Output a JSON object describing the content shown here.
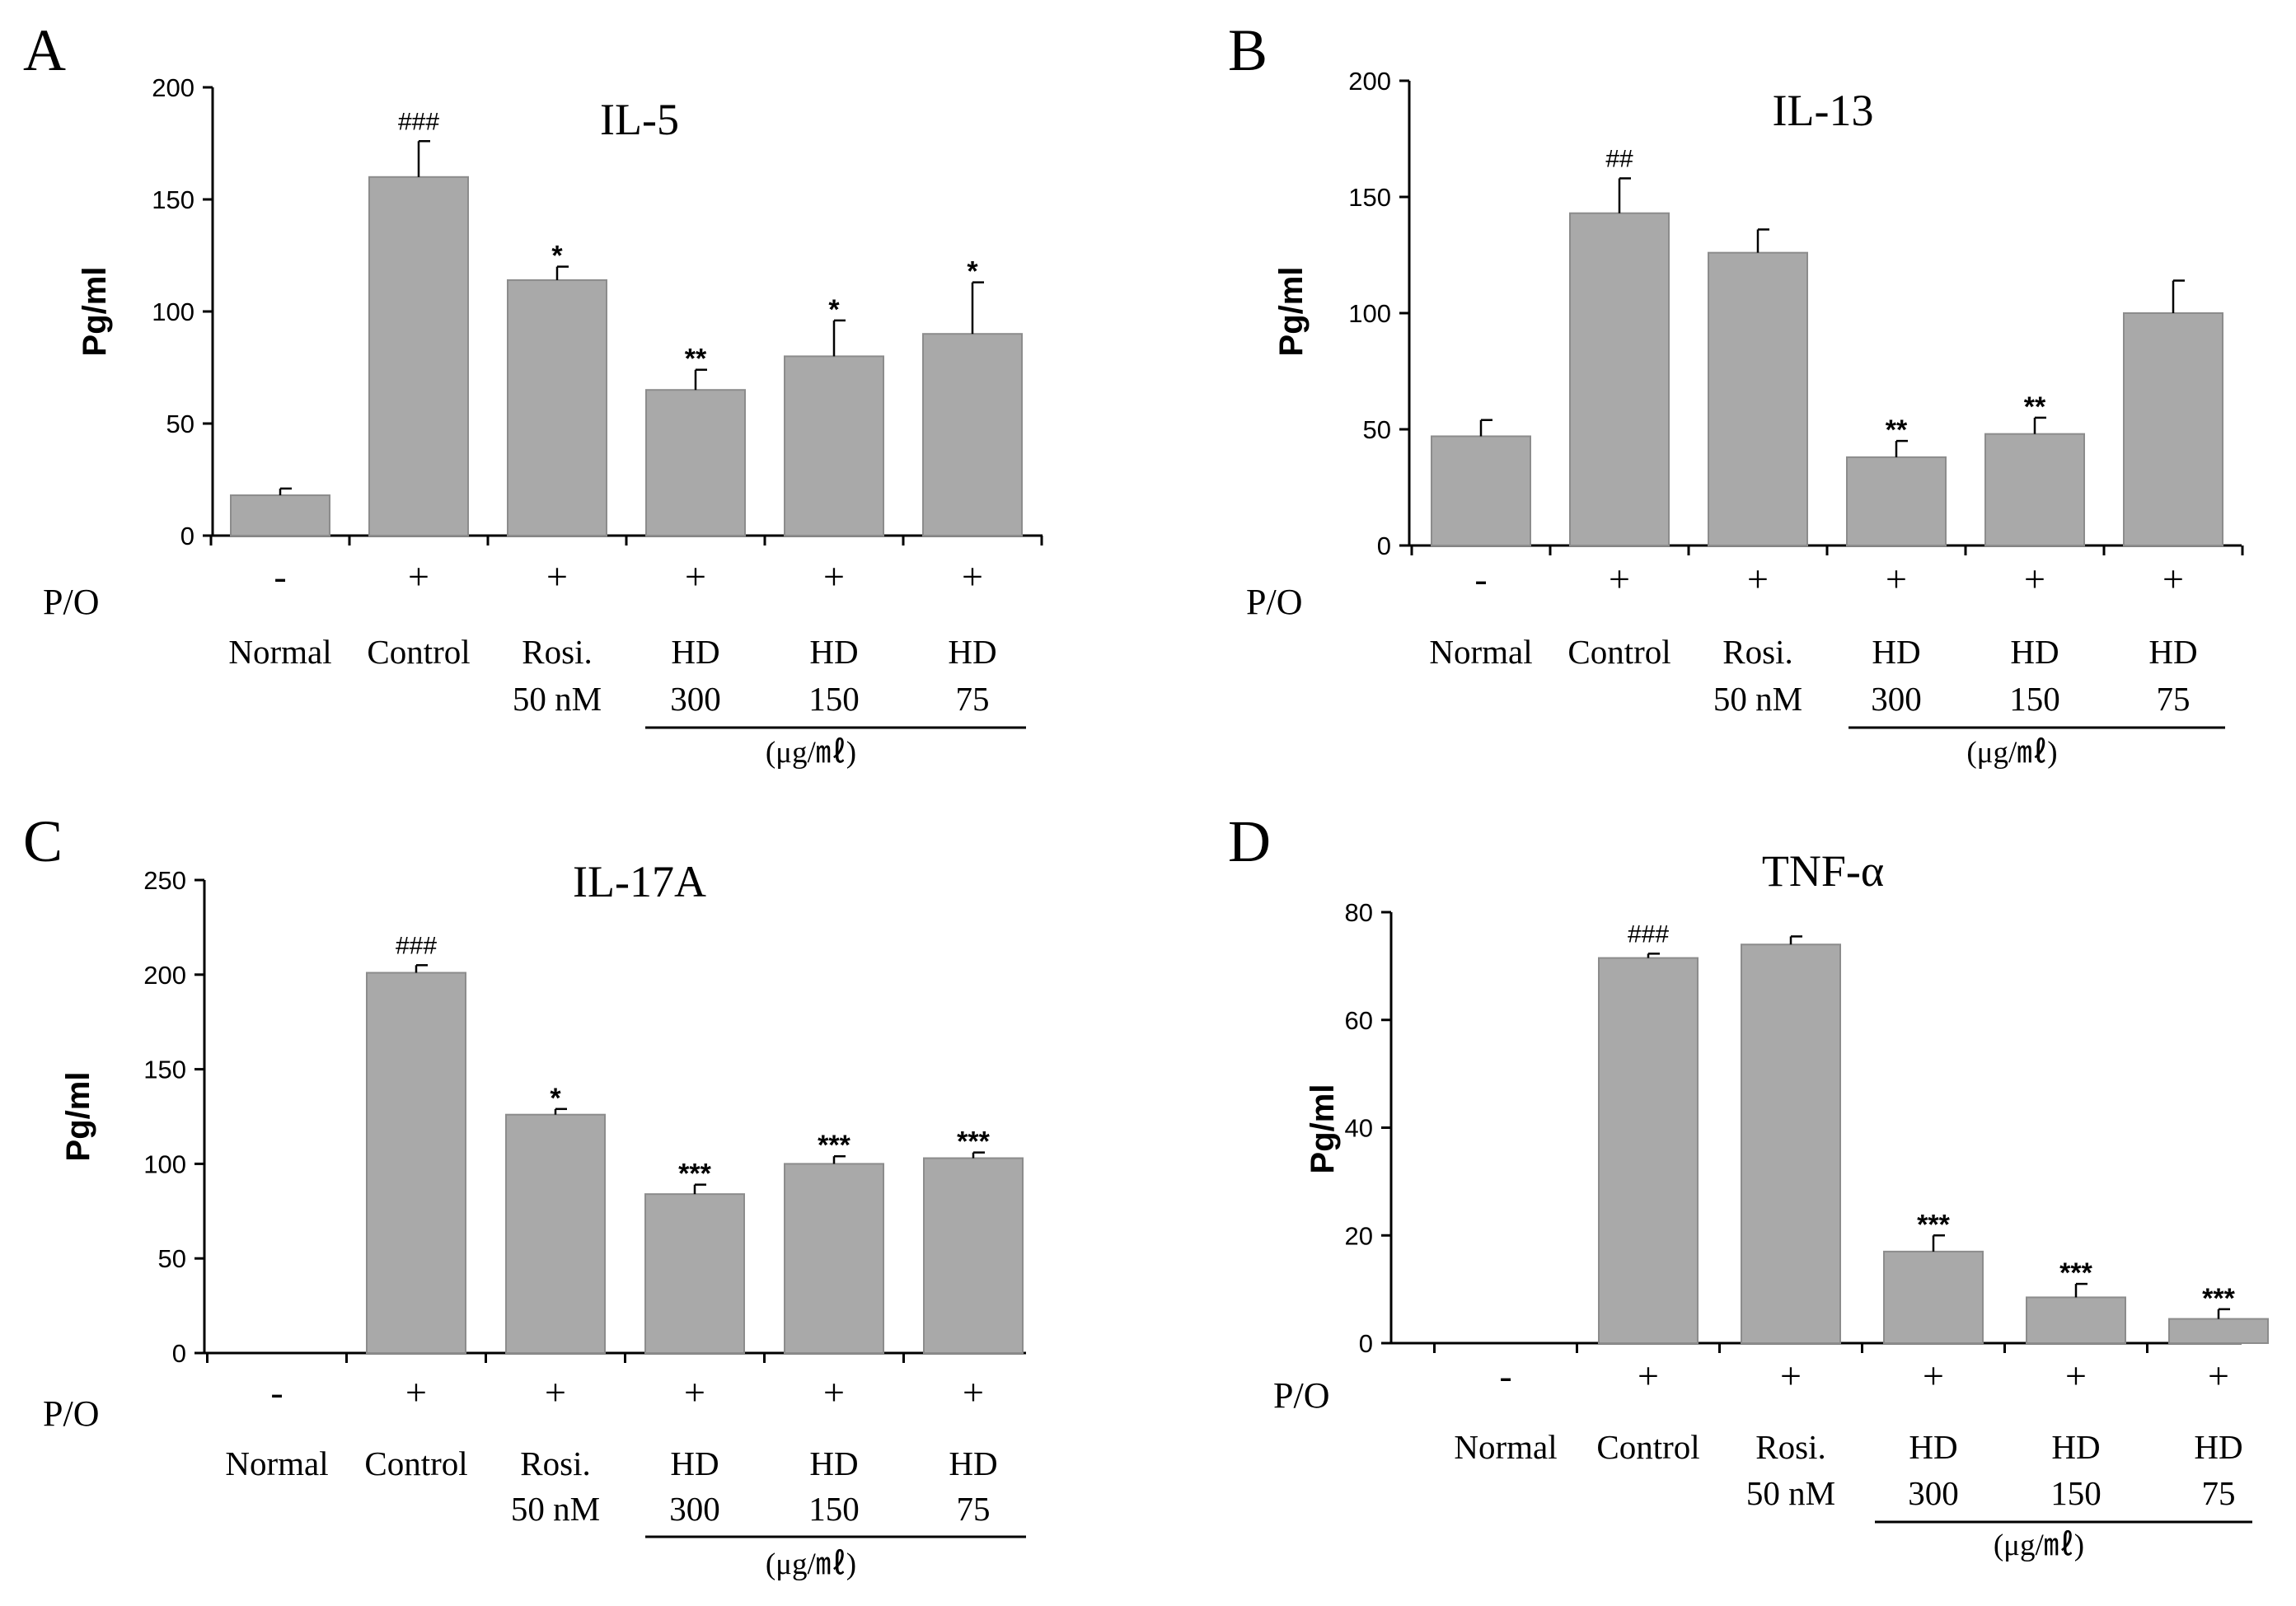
{
  "chart_data": [
    {
      "type": "bar",
      "panel": "A",
      "title": "IL-5",
      "ylabel": "Pg/ml",
      "ylim": [
        0,
        200
      ],
      "yticks": [
        "0",
        "50",
        "100",
        "150",
        "200"
      ],
      "po_label": "P/O",
      "treatment": [
        "-",
        "+",
        "+",
        "+",
        "+",
        "+"
      ],
      "categories": [
        [
          "Normal"
        ],
        [
          "Control"
        ],
        [
          "Rosi.",
          "50 nM"
        ],
        [
          "HD",
          "300"
        ],
        [
          "HD",
          "150"
        ],
        [
          "HD",
          "75"
        ]
      ],
      "unit_label": "(μg/㎖)",
      "values": [
        18,
        160,
        114,
        65,
        80,
        90
      ],
      "errors": [
        3,
        16,
        6,
        9,
        16,
        23
      ],
      "significance": [
        "",
        "###",
        "*",
        "**",
        "*",
        "*"
      ]
    },
    {
      "type": "bar",
      "panel": "B",
      "title": "IL-13",
      "ylabel": "Pg/ml",
      "ylim": [
        0,
        200
      ],
      "yticks": [
        "0",
        "50",
        "100",
        "150",
        "200"
      ],
      "po_label": "P/O",
      "treatment": [
        "-",
        "+",
        "+",
        "+",
        "+",
        "+"
      ],
      "categories": [
        [
          "Normal"
        ],
        [
          "Control"
        ],
        [
          "Rosi.",
          "50 nM"
        ],
        [
          "HD",
          "300"
        ],
        [
          "HD",
          "150"
        ],
        [
          "HD",
          "75"
        ]
      ],
      "unit_label": "(μg/㎖)",
      "values": [
        47,
        143,
        126,
        38,
        48,
        100
      ],
      "errors": [
        7,
        15,
        10,
        7,
        7,
        14
      ],
      "significance": [
        "",
        "##",
        "",
        "**",
        "**",
        ""
      ]
    },
    {
      "type": "bar",
      "panel": "C",
      "title": "IL-17A",
      "ylabel": "Pg/ml",
      "ylim": [
        0,
        250
      ],
      "yticks": [
        "0",
        "50",
        "100",
        "150",
        "200",
        "250"
      ],
      "po_label": "P/O",
      "treatment": [
        "-",
        "+",
        "+",
        "+",
        "+",
        "+"
      ],
      "categories": [
        [
          "Normal"
        ],
        [
          "Control"
        ],
        [
          "Rosi.",
          "50 nM"
        ],
        [
          "HD",
          "300"
        ],
        [
          "HD",
          "150"
        ],
        [
          "HD",
          "75"
        ]
      ],
      "unit_label": "(μg/㎖)",
      "values": [
        0,
        201,
        126,
        84,
        100,
        103
      ],
      "errors": [
        0,
        4,
        3,
        5,
        4,
        3
      ],
      "significance": [
        "",
        "###",
        "*",
        "***",
        "***",
        "***"
      ]
    },
    {
      "type": "bar",
      "panel": "D",
      "title": "TNF-α",
      "ylabel": "Pg/ml",
      "ylim": [
        0,
        80
      ],
      "yticks": [
        "0",
        "20",
        "40",
        "60",
        "80"
      ],
      "po_label": "P/O",
      "treatment": [
        "-",
        "+",
        "+",
        "+",
        "+",
        "+"
      ],
      "categories": [
        [
          "Normal"
        ],
        [
          "Control"
        ],
        [
          "Rosi.",
          "50 nM"
        ],
        [
          "HD",
          "300"
        ],
        [
          "HD",
          "150"
        ],
        [
          "HD",
          "75"
        ]
      ],
      "unit_label": "(μg/㎖)",
      "values": [
        0,
        71.5,
        74,
        17,
        8.5,
        4.5
      ],
      "errors": [
        0,
        0.8,
        1.5,
        3,
        2.5,
        1.8
      ],
      "significance": [
        "",
        "###",
        "",
        "***",
        "***",
        "***"
      ]
    }
  ]
}
